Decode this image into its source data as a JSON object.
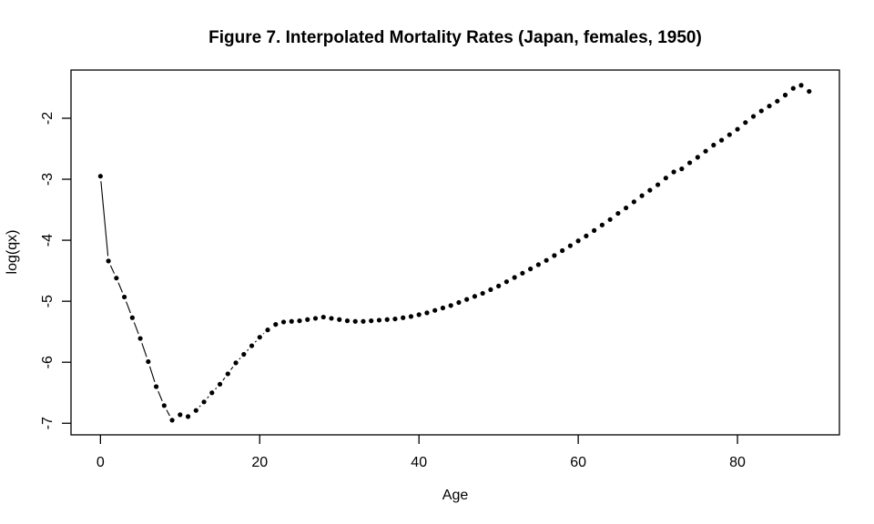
{
  "figure": {
    "background": "#ffffff",
    "foreground": "#000000"
  },
  "chart_data": {
    "type": "scatter",
    "title": "Figure 7. Interpolated Mortality Rates (Japan, females, 1950)",
    "xlabel": "Age",
    "ylabel": "log(qx)",
    "grid": false,
    "legend": null,
    "marker": "filled-black-circle",
    "line_style": "segments-between-points-with-gaps",
    "point_color": "#000000",
    "xlim": [
      -3.7,
      92.8
    ],
    "ylim": [
      -7.19,
      -1.21
    ],
    "x_ticks": [
      0,
      20,
      40,
      60,
      80
    ],
    "y_ticks": [
      -2,
      -3,
      -4,
      -5,
      -6,
      -7
    ],
    "series": [
      {
        "name": "log(qx) by single year of age",
        "x": [
          0,
          1,
          2,
          3,
          4,
          5,
          6,
          7,
          8,
          9,
          10,
          11,
          12,
          13,
          14,
          15,
          16,
          17,
          18,
          19,
          20,
          21,
          22,
          23,
          24,
          25,
          26,
          27,
          28,
          29,
          30,
          31,
          32,
          33,
          34,
          35,
          36,
          37,
          38,
          39,
          40,
          41,
          42,
          43,
          44,
          45,
          46,
          47,
          48,
          49,
          50,
          51,
          52,
          53,
          54,
          55,
          56,
          57,
          58,
          59,
          60,
          61,
          62,
          63,
          64,
          65,
          66,
          67,
          68,
          69,
          70,
          71,
          72,
          73,
          74,
          75,
          76,
          77,
          78,
          79,
          80,
          81,
          82,
          83,
          84,
          85,
          86,
          87,
          88,
          89
        ],
        "y": [
          -2.95,
          -4.34,
          -4.62,
          -4.93,
          -5.27,
          -5.61,
          -5.99,
          -6.4,
          -6.71,
          -6.95,
          -6.86,
          -6.89,
          -6.79,
          -6.65,
          -6.5,
          -6.36,
          -6.19,
          -6.01,
          -5.87,
          -5.73,
          -5.59,
          -5.47,
          -5.38,
          -5.34,
          -5.33,
          -5.32,
          -5.3,
          -5.28,
          -5.26,
          -5.28,
          -5.3,
          -5.32,
          -5.33,
          -5.33,
          -5.32,
          -5.31,
          -5.3,
          -5.29,
          -5.27,
          -5.25,
          -5.22,
          -5.19,
          -5.15,
          -5.11,
          -5.07,
          -5.02,
          -4.97,
          -4.92,
          -4.87,
          -4.81,
          -4.75,
          -4.68,
          -4.61,
          -4.54,
          -4.47,
          -4.4,
          -4.33,
          -4.25,
          -4.17,
          -4.09,
          -4.01,
          -3.93,
          -3.84,
          -3.75,
          -3.66,
          -3.56,
          -3.47,
          -3.37,
          -3.27,
          -3.18,
          -3.09,
          -2.98,
          -2.88,
          -2.83,
          -2.73,
          -2.64,
          -2.54,
          -2.44,
          -2.36,
          -2.27,
          -2.18,
          -2.07,
          -1.97,
          -1.88,
          -1.8,
          -1.72,
          -1.62,
          -1.51,
          -1.46,
          -1.56
        ]
      }
    ]
  }
}
